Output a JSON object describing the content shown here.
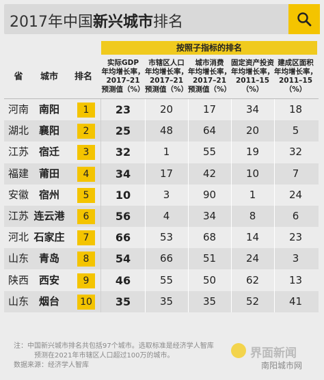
{
  "header": {
    "title_prefix": "2017年中国",
    "title_bold": "新兴城市",
    "title_suffix": "排名"
  },
  "table": {
    "group_header": "按照子指标的排名",
    "columns": [
      {
        "key": "province",
        "label": "省"
      },
      {
        "key": "city",
        "label": "城市"
      },
      {
        "key": "rank",
        "label": "排名"
      },
      {
        "key": "gdp",
        "label": "实际GDP\n年均增长率，\n2017–21\n预测值（%）"
      },
      {
        "key": "pop",
        "label": "市辖区人口\n年均增长率，\n2017–21\n预测值（%）"
      },
      {
        "key": "consume",
        "label": "城市消费\n年均增长率，\n2017–21\n预测值（%）"
      },
      {
        "key": "invest",
        "label": "固定资产投资\n年均增长率，\n2011–15\n（%）"
      },
      {
        "key": "area",
        "label": "建成区面积\n年均增长率，\n2011–15\n（%）"
      }
    ],
    "rows": [
      {
        "province": "河南",
        "city": "南阳",
        "rank": "1",
        "gdp": "23",
        "pop": "20",
        "consume": "17",
        "invest": "34",
        "area": "18"
      },
      {
        "province": "湖北",
        "city": "襄阳",
        "rank": "2",
        "gdp": "25",
        "pop": "48",
        "consume": "64",
        "invest": "20",
        "area": "5"
      },
      {
        "province": "江苏",
        "city": "宿迁",
        "rank": "3",
        "gdp": "32",
        "pop": "1",
        "consume": "55",
        "invest": "19",
        "area": "32"
      },
      {
        "province": "福建",
        "city": "莆田",
        "rank": "4",
        "gdp": "34",
        "pop": "17",
        "consume": "42",
        "invest": "10",
        "area": "7"
      },
      {
        "province": "安徽",
        "city": "宿州",
        "rank": "5",
        "gdp": "10",
        "pop": "3",
        "consume": "90",
        "invest": "1",
        "area": "24"
      },
      {
        "province": "江苏",
        "city": "连云港",
        "rank": "6",
        "gdp": "56",
        "pop": "4",
        "consume": "34",
        "invest": "8",
        "area": "6"
      },
      {
        "province": "河北",
        "city": "石家庄",
        "rank": "7",
        "gdp": "66",
        "pop": "53",
        "consume": "68",
        "invest": "14",
        "area": "23"
      },
      {
        "province": "山东",
        "city": "青岛",
        "rank": "8",
        "gdp": "54",
        "pop": "66",
        "consume": "51",
        "invest": "24",
        "area": "3"
      },
      {
        "province": "陕西",
        "city": "西安",
        "rank": "9",
        "gdp": "46",
        "pop": "55",
        "consume": "50",
        "invest": "62",
        "area": "13"
      },
      {
        "province": "山东",
        "city": "烟台",
        "rank": "10",
        "gdp": "35",
        "pop": "35",
        "consume": "35",
        "invest": "52",
        "area": "41"
      }
    ]
  },
  "footer": {
    "note_line1": "注：中国新兴城市排名共包括97个城市。选取标准是经济学人智库",
    "note_line2": "预测在2021年市辖区人口超过100万的城市。",
    "source": "数据来源：经济学人智库"
  },
  "watermark": {
    "brand": "界面新闻",
    "sub": "南阳城市网"
  },
  "colors": {
    "accent": "#f4c400",
    "group_header": "#f0ca1e"
  }
}
